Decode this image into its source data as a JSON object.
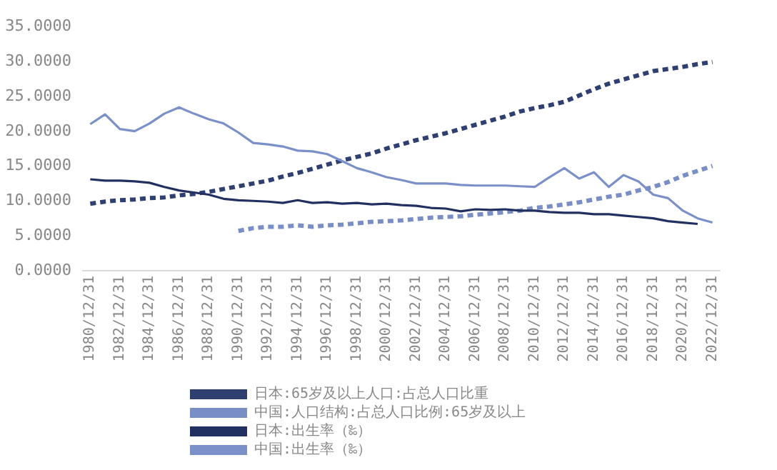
{
  "chart_data": {
    "type": "line",
    "categories": [
      "1980/12/31",
      null,
      "1982/12/31",
      null,
      "1984/12/31",
      null,
      "1986/12/31",
      null,
      "1988/12/31",
      null,
      "1990/12/31",
      null,
      "1992/12/31",
      null,
      "1994/12/31",
      null,
      "1996/12/31",
      null,
      "1998/12/31",
      null,
      "2000/12/31",
      null,
      "2002/12/31",
      null,
      "2004/12/31",
      null,
      "2006/12/31",
      null,
      "2008/12/31",
      null,
      "2010/12/31",
      null,
      "2012/12/31",
      null,
      "2014/12/31",
      null,
      "2016/12/31",
      null,
      "2018/12/31",
      null,
      "2020/12/31",
      null,
      "2022/12/31"
    ],
    "series": [
      {
        "name": "日本:65岁及以上人口:占总人口比重",
        "color": "#2f3f6f",
        "line_style": "dashed",
        "values": [
          9.5,
          9.8,
          10.0,
          10.1,
          10.3,
          10.4,
          10.7,
          10.9,
          11.2,
          11.6,
          12.0,
          12.4,
          12.8,
          13.4,
          13.9,
          14.5,
          15.1,
          15.7,
          16.2,
          16.7,
          17.4,
          18.0,
          18.6,
          19.1,
          19.6,
          20.2,
          20.8,
          21.4,
          22.0,
          22.7,
          23.2,
          23.6,
          24.1,
          25.0,
          25.9,
          26.7,
          27.3,
          27.9,
          28.5,
          28.8,
          29.1,
          29.5,
          29.8
        ]
      },
      {
        "name": "中国:人口结构:占总人口比例:65岁及以上",
        "color": "#7a8ec6",
        "line_style": "dashed",
        "values": [
          null,
          null,
          null,
          null,
          null,
          null,
          null,
          null,
          null,
          null,
          5.6,
          6.0,
          6.2,
          6.2,
          6.4,
          6.2,
          6.4,
          6.5,
          6.7,
          6.9,
          7.0,
          7.1,
          7.3,
          7.5,
          7.6,
          7.7,
          7.9,
          8.1,
          8.3,
          8.5,
          8.9,
          9.1,
          9.4,
          9.7,
          10.1,
          10.5,
          10.8,
          11.4,
          11.9,
          12.6,
          13.5,
          14.2,
          14.9
        ]
      },
      {
        "name": "日本:出生率（‰）",
        "color": "#213060",
        "line_style": "solid",
        "values": [
          13.0,
          12.8,
          12.8,
          12.7,
          12.5,
          11.9,
          11.4,
          11.1,
          10.8,
          10.2,
          10.0,
          9.9,
          9.8,
          9.6,
          10.0,
          9.6,
          9.7,
          9.5,
          9.6,
          9.4,
          9.5,
          9.3,
          9.2,
          8.9,
          8.8,
          8.4,
          8.7,
          8.6,
          8.7,
          8.5,
          8.5,
          8.3,
          8.2,
          8.2,
          8.0,
          8.0,
          7.8,
          7.6,
          7.4,
          7.0,
          6.8,
          6.6,
          null
        ]
      },
      {
        "name": "中国:出生率（‰）",
        "color": "#7b90c8",
        "line_style": "solid",
        "values": [
          20.9,
          22.3,
          20.2,
          19.9,
          21.0,
          22.4,
          23.3,
          22.4,
          21.6,
          21.0,
          19.7,
          18.2,
          18.0,
          17.7,
          17.1,
          17.0,
          16.6,
          15.6,
          14.6,
          14.0,
          13.3,
          12.9,
          12.4,
          12.4,
          12.4,
          12.2,
          12.1,
          12.1,
          12.1,
          12.0,
          11.9,
          13.3,
          14.6,
          13.1,
          14.0,
          11.9,
          13.6,
          12.7,
          10.8,
          10.3,
          8.5,
          7.4,
          6.8
        ]
      }
    ],
    "ylim": [
      0,
      35
    ],
    "yticks": [
      {
        "value": 0,
        "label": "0.0000"
      },
      {
        "value": 5,
        "label": "5.0000"
      },
      {
        "value": 10,
        "label": "10.0000"
      },
      {
        "value": 15,
        "label": "15.0000"
      },
      {
        "value": 20,
        "label": "20.0000"
      },
      {
        "value": 25,
        "label": "25.0000"
      },
      {
        "value": 30,
        "label": "30.0000"
      },
      {
        "value": 35,
        "label": "35.0000"
      }
    ],
    "grid": false,
    "legend": "bottom",
    "marker": "none"
  }
}
